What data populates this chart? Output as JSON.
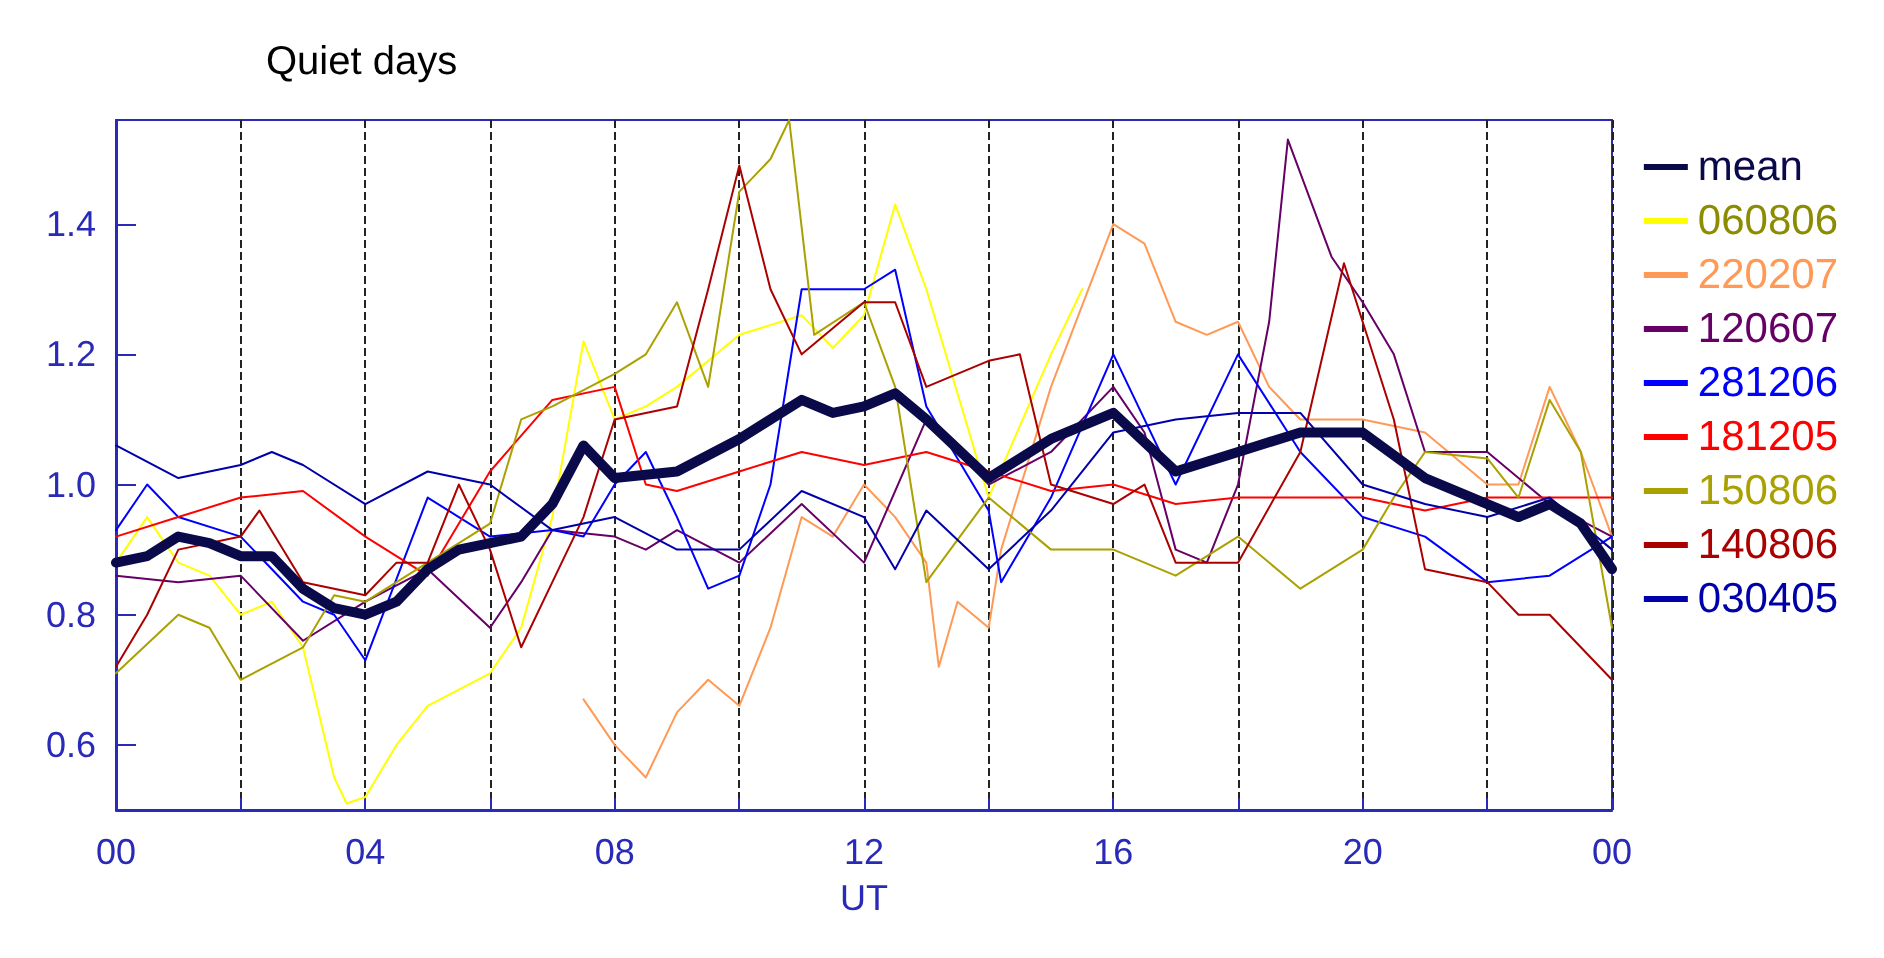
{
  "chart_data": {
    "type": "line",
    "title": "Quiet days",
    "xlabel": "UT",
    "xlim": [
      0,
      24
    ],
    "ylim": [
      0.5,
      1.56
    ],
    "xticks": [
      {
        "value": 0,
        "label": "00"
      },
      {
        "value": 2,
        "label": null
      },
      {
        "value": 4,
        "label": "04"
      },
      {
        "value": 6,
        "label": null
      },
      {
        "value": 8,
        "label": "08"
      },
      {
        "value": 10,
        "label": null
      },
      {
        "value": 12,
        "label": "12"
      },
      {
        "value": 14,
        "label": null
      },
      {
        "value": 16,
        "label": "16"
      },
      {
        "value": 18,
        "label": null
      },
      {
        "value": 20,
        "label": "20"
      },
      {
        "value": 22,
        "label": null
      },
      {
        "value": 24,
        "label": "00"
      }
    ],
    "yticks": [
      0.6,
      0.8,
      {
        "value": 1,
        "label": "1.0"
      },
      1.2,
      1.4
    ],
    "grid": "x",
    "legend": "right",
    "marker": "none",
    "line_style": "solid",
    "series": [
      {
        "name": "mean",
        "color": "#0a0a4a",
        "x": [
          0,
          0.5,
          1,
          1.5,
          2,
          2.5,
          3,
          3.5,
          4,
          4.5,
          5,
          5.5,
          6,
          6.5,
          7,
          7.5,
          8,
          9,
          10,
          11,
          11.5,
          12,
          12.5,
          13,
          14,
          15,
          16,
          17,
          18,
          19,
          20,
          21,
          22,
          22.5,
          23,
          23.5,
          24
        ],
        "values": [
          0.88,
          0.89,
          0.92,
          0.91,
          0.89,
          0.89,
          0.84,
          0.81,
          0.8,
          0.82,
          0.87,
          0.9,
          0.91,
          0.92,
          0.97,
          1.06,
          1.01,
          1.02,
          1.07,
          1.13,
          1.11,
          1.12,
          1.14,
          1.1,
          1.01,
          1.07,
          1.11,
          1.02,
          1.05,
          1.08,
          1.08,
          1.01,
          0.97,
          0.95,
          0.97,
          0.94,
          0.87
        ]
      },
      {
        "name": "060806",
        "color": "#ffff00",
        "x": [
          0,
          0.5,
          1,
          1.5,
          2,
          2.5,
          3,
          3.5,
          3.7,
          4,
          4.5,
          5,
          6,
          6.5,
          7,
          7.5,
          8,
          8.5,
          9,
          10,
          11,
          11.5,
          12,
          12.5,
          13,
          14,
          15,
          15.5
        ],
        "values": [
          0.88,
          0.95,
          0.88,
          0.86,
          0.8,
          0.82,
          0.75,
          0.55,
          0.51,
          0.52,
          0.6,
          0.66,
          0.71,
          0.78,
          0.95,
          1.22,
          1.1,
          1.12,
          1.15,
          1.23,
          1.26,
          1.21,
          1.26,
          1.43,
          1.3,
          0.98,
          1.2,
          1.3
        ]
      },
      {
        "name": "220207",
        "color": "#ff9955",
        "x": [
          7.5,
          8,
          8.5,
          9,
          9.5,
          10,
          10.5,
          11,
          11.5,
          12,
          12.5,
          13,
          13.2,
          13.5,
          14,
          14.2,
          15,
          16,
          16.5,
          17,
          17.5,
          18,
          18.5,
          19,
          20,
          21,
          22,
          22.5,
          23,
          23.5,
          24
        ],
        "values": [
          0.67,
          0.6,
          0.55,
          0.65,
          0.7,
          0.66,
          0.78,
          0.95,
          0.92,
          1.0,
          0.95,
          0.88,
          0.72,
          0.82,
          0.78,
          0.9,
          1.15,
          1.4,
          1.37,
          1.25,
          1.23,
          1.25,
          1.15,
          1.1,
          1.1,
          1.08,
          1.0,
          1.0,
          1.15,
          1.05,
          0.92
        ]
      },
      {
        "name": "120607",
        "color": "#660066",
        "x": [
          0,
          1,
          2,
          3,
          4,
          5,
          6,
          6.5,
          7,
          8,
          8.5,
          9,
          10,
          11,
          12,
          13,
          14,
          15,
          16,
          16.5,
          17,
          17.5,
          18,
          18.5,
          18.8,
          19.5,
          20,
          20.5,
          21,
          22,
          23,
          24
        ],
        "values": [
          0.86,
          0.85,
          0.86,
          0.76,
          0.82,
          0.87,
          0.78,
          0.85,
          0.93,
          0.92,
          0.9,
          0.93,
          0.88,
          0.97,
          0.88,
          1.1,
          1.0,
          1.05,
          1.15,
          1.08,
          0.9,
          0.88,
          1.0,
          1.25,
          1.53,
          1.35,
          1.28,
          1.2,
          1.05,
          1.05,
          0.97,
          0.92
        ]
      },
      {
        "name": "281206",
        "color": "#0000ff",
        "x": [
          0,
          0.5,
          1,
          2,
          3,
          3.5,
          4,
          5,
          6,
          7,
          7.5,
          8,
          8.5,
          9,
          9.5,
          10,
          10.5,
          11,
          12,
          12.5,
          13,
          14,
          14.2,
          15,
          16,
          16.5,
          17,
          18,
          19,
          20,
          21,
          22,
          23,
          24
        ],
        "values": [
          0.93,
          1.0,
          0.95,
          0.92,
          0.82,
          0.8,
          0.73,
          0.98,
          0.92,
          0.93,
          0.92,
          1.0,
          1.05,
          0.95,
          0.84,
          0.86,
          1.0,
          1.3,
          1.3,
          1.33,
          1.12,
          0.96,
          0.85,
          0.98,
          1.2,
          1.1,
          1.0,
          1.2,
          1.05,
          0.95,
          0.92,
          0.85,
          0.86,
          0.92
        ]
      },
      {
        "name": "181205",
        "color": "#ff0000",
        "x": [
          0,
          1,
          2,
          3,
          4,
          5,
          6,
          7,
          8,
          8.5,
          9,
          10,
          11,
          12,
          13,
          14,
          15,
          16,
          17,
          18,
          19,
          20,
          21,
          22,
          23,
          24
        ],
        "values": [
          0.92,
          0.95,
          0.98,
          0.99,
          0.92,
          0.86,
          1.02,
          1.13,
          1.15,
          1.0,
          0.99,
          1.02,
          1.05,
          1.03,
          1.05,
          1.02,
          0.99,
          1.0,
          0.97,
          0.98,
          0.98,
          0.98,
          0.96,
          0.98,
          0.98,
          0.98
        ]
      },
      {
        "name": "150806",
        "color": "#aaa000",
        "x": [
          0,
          1,
          1.5,
          2,
          3,
          3.5,
          4,
          5,
          6,
          6.5,
          7,
          8,
          8.5,
          9,
          9.5,
          10,
          10.5,
          10.8,
          11.2,
          12,
          12.5,
          13,
          14,
          15,
          16,
          17,
          18,
          19,
          20,
          20.5,
          21,
          22,
          22.5,
          23,
          23.5,
          24
        ],
        "values": [
          0.71,
          0.8,
          0.78,
          0.7,
          0.75,
          0.83,
          0.82,
          0.88,
          0.94,
          1.1,
          1.12,
          1.17,
          1.2,
          1.28,
          1.15,
          1.45,
          1.5,
          1.56,
          1.23,
          1.28,
          1.15,
          0.85,
          0.98,
          0.9,
          0.9,
          0.86,
          0.92,
          0.84,
          0.9,
          0.98,
          1.05,
          1.04,
          0.98,
          1.13,
          1.05,
          0.78
        ]
      },
      {
        "name": "140806",
        "color": "#aa0000",
        "x": [
          0,
          0.5,
          1,
          2,
          2.3,
          3,
          4,
          4.5,
          5,
          5.5,
          6,
          6.5,
          7,
          7.5,
          8,
          9,
          9.5,
          10,
          10.5,
          11,
          12,
          12.5,
          13,
          14,
          14.5,
          15,
          16,
          16.5,
          17,
          18,
          19,
          19.7,
          20,
          20.5,
          21,
          22,
          22.5,
          23,
          24
        ],
        "values": [
          0.72,
          0.8,
          0.9,
          0.92,
          0.96,
          0.85,
          0.83,
          0.88,
          0.88,
          1.0,
          0.9,
          0.75,
          0.85,
          0.95,
          1.1,
          1.12,
          1.3,
          1.49,
          1.3,
          1.2,
          1.28,
          1.28,
          1.15,
          1.19,
          1.2,
          1.0,
          0.97,
          1.0,
          0.88,
          0.88,
          1.05,
          1.34,
          1.25,
          1.1,
          0.87,
          0.85,
          0.8,
          0.8,
          0.7
        ]
      },
      {
        "name": "030405",
        "color": "#0000aa",
        "x": [
          0,
          1,
          2,
          2.5,
          3,
          4,
          5,
          6,
          7,
          8,
          9,
          10,
          11,
          12,
          12.5,
          13,
          14,
          15,
          16,
          17,
          18,
          19,
          20,
          21,
          22,
          23,
          24
        ],
        "values": [
          1.06,
          1.01,
          1.03,
          1.05,
          1.03,
          0.97,
          1.02,
          1.0,
          0.93,
          0.95,
          0.9,
          0.9,
          0.99,
          0.95,
          0.87,
          0.96,
          0.87,
          0.96,
          1.08,
          1.1,
          1.11,
          1.11,
          1.0,
          0.97,
          0.95,
          0.98,
          0.9
        ]
      }
    ]
  }
}
